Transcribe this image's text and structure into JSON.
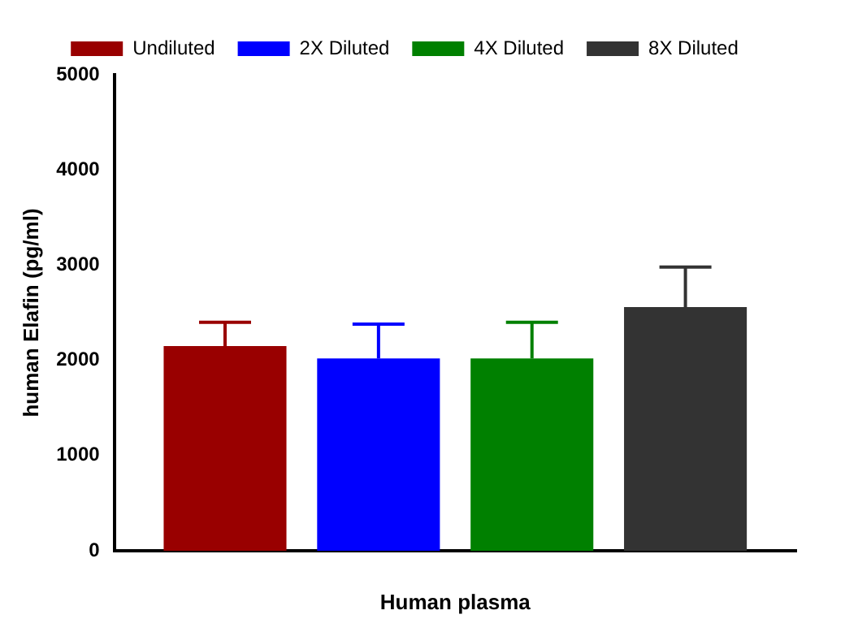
{
  "chart_data": {
    "type": "bar",
    "xlabel": "Human plasma",
    "ylabel": "human Elafin (pg/ml)",
    "categories": [
      null
    ],
    "series": [
      {
        "name": "Undiluted",
        "color": "#990000",
        "values": [
          2150
        ],
        "errors": [
          [
            2150,
            2400
          ]
        ]
      },
      {
        "name": "2X Diluted",
        "color": "#0000ff",
        "values": [
          2020
        ],
        "errors": [
          [
            2020,
            2380
          ]
        ]
      },
      {
        "name": "4X Diluted",
        "color": "#008000",
        "values": [
          2020
        ],
        "errors": [
          [
            2020,
            2400
          ]
        ]
      },
      {
        "name": "8X Diluted",
        "color": "#333333",
        "values": [
          2560
        ],
        "errors": [
          [
            2560,
            2980
          ]
        ]
      }
    ],
    "ylim": [
      0,
      5000
    ],
    "yticks": [
      0,
      1000,
      2000,
      3000,
      4000,
      5000
    ],
    "grid": false,
    "legend": "top"
  }
}
